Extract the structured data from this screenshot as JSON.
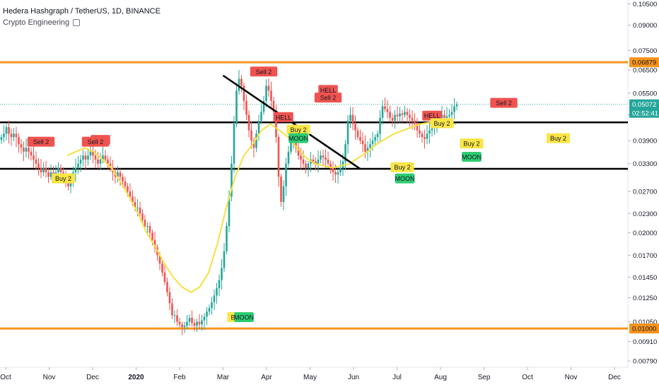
{
  "header": {
    "symbol_line": "Hedera Hashgraph / TetherUS, 1D, BINANCE",
    "indicator": "Crypto Engineering",
    "indicator_icon": "eye-icon"
  },
  "colors": {
    "bull": "#26a69a",
    "bear": "#ef5350",
    "ma": "#f7e040",
    "support": "#000000",
    "orange": "#f7941d",
    "price_tag": "#26a69a",
    "sell": "#ef5350",
    "buy": "#f9e547",
    "moon": "#2ecc71"
  },
  "chart_data": {
    "type": "candlestick",
    "scale": "log",
    "x_axis": [
      "Oct",
      "Nov",
      "Dec",
      "2020",
      "Feb",
      "Mar",
      "Apr",
      "May",
      "Jun",
      "Jul",
      "Aug",
      "Sep",
      "Oct",
      "Nov",
      "Dec"
    ],
    "y_ticks": [
      "0.10500",
      "0.09000",
      "0.07500",
      "0.06500",
      "0.05500",
      "0.04700",
      "0.03900",
      "0.03300",
      "0.02700",
      "0.02300",
      "0.02000",
      "0.01700",
      "0.01450",
      "0.01250",
      "0.01050",
      "0.00910",
      "0.00790"
    ],
    "y_tick_values": [
      0.105,
      0.09,
      0.075,
      0.065,
      0.055,
      0.047,
      0.039,
      0.033,
      0.027,
      0.023,
      0.02,
      0.017,
      0.0145,
      0.0125,
      0.0105,
      0.0091,
      0.0079
    ],
    "current_price": "0.05072",
    "countdown": "02:52:41",
    "price_value": 0.05072,
    "horizontal_levels": [
      {
        "price": 0.06879,
        "color": "orange",
        "label": "0.06879"
      },
      {
        "price": 0.01,
        "color": "orange",
        "label": "0.01000"
      },
      {
        "price": 0.0445,
        "color": "black"
      },
      {
        "price": 0.0318,
        "color": "black"
      }
    ],
    "trendline": {
      "from": [
        5.0,
        0.0625
      ],
      "to": [
        8.15,
        0.0318
      ]
    },
    "close_series": [
      0.04,
      0.041,
      0.043,
      0.041,
      0.04,
      0.041,
      0.04,
      0.038,
      0.037,
      0.036,
      0.037,
      0.036,
      0.035,
      0.034,
      0.033,
      0.032,
      0.031,
      0.032,
      0.031,
      0.03,
      0.031,
      0.03,
      0.031,
      0.032,
      0.031,
      0.03,
      0.029,
      0.028,
      0.03,
      0.031,
      0.032,
      0.033,
      0.034,
      0.035,
      0.034,
      0.035,
      0.036,
      0.035,
      0.034,
      0.033,
      0.034,
      0.035,
      0.034,
      0.033,
      0.032,
      0.031,
      0.03,
      0.031,
      0.03,
      0.029,
      0.028,
      0.027,
      0.026,
      0.025,
      0.024,
      0.024,
      0.023,
      0.022,
      0.021,
      0.021,
      0.02,
      0.019,
      0.018,
      0.017,
      0.016,
      0.015,
      0.014,
      0.013,
      0.012,
      0.011,
      0.011,
      0.0105,
      0.0103,
      0.0101,
      0.0102,
      0.0105,
      0.0108,
      0.0104,
      0.0102,
      0.0105,
      0.0103,
      0.0106,
      0.0109,
      0.0113,
      0.0116,
      0.0121,
      0.0127,
      0.0134,
      0.0142,
      0.0155,
      0.0175,
      0.021,
      0.026,
      0.033,
      0.044,
      0.056,
      0.061,
      0.058,
      0.052,
      0.047,
      0.042,
      0.039,
      0.037,
      0.041,
      0.045,
      0.048,
      0.052,
      0.058,
      0.056,
      0.052,
      0.048,
      0.04,
      0.03,
      0.025,
      0.028,
      0.033,
      0.036,
      0.039,
      0.04,
      0.037,
      0.035,
      0.034,
      0.033,
      0.032,
      0.033,
      0.034,
      0.0335,
      0.033,
      0.034,
      0.035,
      0.0345,
      0.034,
      0.033,
      0.032,
      0.031,
      0.0305,
      0.031,
      0.032,
      0.0335,
      0.038,
      0.045,
      0.047,
      0.044,
      0.042,
      0.04,
      0.039,
      0.038,
      0.036,
      0.037,
      0.038,
      0.039,
      0.04,
      0.041,
      0.046,
      0.05,
      0.049,
      0.048,
      0.046,
      0.045,
      0.047,
      0.0465,
      0.0475,
      0.047,
      0.048,
      0.047,
      0.046,
      0.045,
      0.044,
      0.042,
      0.041,
      0.04,
      0.0395,
      0.041,
      0.042,
      0.043,
      0.044,
      0.045,
      0.046,
      0.047,
      0.046,
      0.0465,
      0.047,
      0.048,
      0.05,
      0.0507
    ],
    "ma_series": [
      0.035,
      0.036,
      0.037,
      0.036,
      0.034,
      0.032,
      0.029,
      0.026,
      0.023,
      0.02,
      0.018,
      0.016,
      0.0145,
      0.0135,
      0.013,
      0.0135,
      0.015,
      0.0185,
      0.024,
      0.03,
      0.035,
      0.038,
      0.042,
      0.044,
      0.042,
      0.04,
      0.037,
      0.0345,
      0.033,
      0.0325,
      0.032,
      0.0325,
      0.033,
      0.0345,
      0.036,
      0.038,
      0.0395,
      0.041,
      0.042,
      0.043,
      0.044,
      0.0445,
      0.0445,
      0.044,
      0.044
    ],
    "signals": [
      {
        "label": "Sell 2",
        "kind": "sell",
        "day": 16,
        "price": 0.0385
      },
      {
        "label": "Buy 2",
        "kind": "buy",
        "day": 25,
        "price": 0.0295
      },
      {
        "label": "HELL",
        "kind": "sell",
        "day": 40,
        "price": 0.039
      },
      {
        "label": "Sell 2",
        "kind": "sell",
        "day": 38,
        "price": 0.0385
      },
      {
        "label": "Buy 2",
        "kind": "buy",
        "day": 96,
        "price": 0.0108
      },
      {
        "label": "MOON",
        "kind": "moon",
        "day": 98,
        "price": 0.0108
      },
      {
        "label": "Sell 2",
        "kind": "sell",
        "day": 106,
        "price": 0.064
      },
      {
        "label": "HELL",
        "kind": "sell",
        "day": 114,
        "price": 0.046
      },
      {
        "label": "Buy 2",
        "kind": "buy",
        "day": 120,
        "price": 0.042
      },
      {
        "label": "MOON",
        "kind": "moon",
        "day": 120,
        "price": 0.0395
      },
      {
        "label": "HELL",
        "kind": "sell",
        "day": 132,
        "price": 0.056
      },
      {
        "label": "Sell 2",
        "kind": "sell",
        "day": 132,
        "price": 0.053
      },
      {
        "label": "Buy 2",
        "kind": "buy",
        "day": 162,
        "price": 0.032
      },
      {
        "label": "MOON",
        "kind": "moon",
        "day": 163,
        "price": 0.0295
      },
      {
        "label": "HELL",
        "kind": "sell",
        "day": 174,
        "price": 0.0465
      },
      {
        "label": "Buy 2",
        "kind": "buy",
        "day": 178,
        "price": 0.044
      },
      {
        "label": "Buy 2",
        "kind": "buy",
        "day": 190,
        "price": 0.038
      },
      {
        "label": "MOON",
        "kind": "moon",
        "day": 190,
        "price": 0.0345
      },
      {
        "label": "Sell 2",
        "kind": "sell",
        "day": 203,
        "price": 0.051
      },
      {
        "label": "Buy 2",
        "kind": "buy",
        "day": 225,
        "price": 0.0395
      }
    ]
  }
}
